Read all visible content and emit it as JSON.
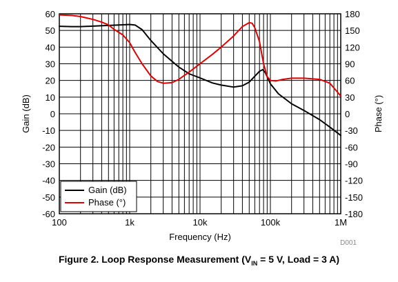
{
  "chart_data": {
    "type": "line",
    "x_scale": "log",
    "xlim": [
      100,
      1000000
    ],
    "xlabel": "Frequency (Hz)",
    "x_ticks": [
      {
        "value": 100,
        "label": "100"
      },
      {
        "value": 1000,
        "label": "1k"
      },
      {
        "value": 10000,
        "label": "10k"
      },
      {
        "value": 100000,
        "label": "100k"
      },
      {
        "value": 1000000,
        "label": "1M"
      }
    ],
    "y_left": {
      "label": "Gain (dB)",
      "lim": [
        -60,
        60
      ],
      "ticks": [
        "60",
        "50",
        "40",
        "30",
        "20",
        "10",
        "0",
        "-10",
        "-20",
        "-30",
        "-40",
        "-50",
        "-60"
      ]
    },
    "y_right": {
      "label": "Phase (°)",
      "lim": [
        -180,
        180
      ],
      "ticks": [
        "180",
        "150",
        "120",
        "90",
        "60",
        "30",
        "0",
        "-30",
        "-60",
        "-90",
        "-120",
        "-150",
        "-180"
      ]
    },
    "grid": true,
    "legend_placement": "bottom-left",
    "series": [
      {
        "name": "Gain (dB)",
        "axis": "left",
        "color": "#000000",
        "points": [
          [
            100,
            52.5
          ],
          [
            150,
            52.3
          ],
          [
            200,
            52.3
          ],
          [
            300,
            52.6
          ],
          [
            500,
            53
          ],
          [
            700,
            53.3
          ],
          [
            1000,
            53.6
          ],
          [
            1200,
            53.2
          ],
          [
            1500,
            50.5
          ],
          [
            2000,
            44
          ],
          [
            3000,
            36
          ],
          [
            5000,
            28
          ],
          [
            7000,
            24
          ],
          [
            10000,
            21.5
          ],
          [
            15000,
            18.5
          ],
          [
            20000,
            17.2
          ],
          [
            30000,
            16
          ],
          [
            40000,
            16.8
          ],
          [
            50000,
            19
          ],
          [
            60000,
            22.5
          ],
          [
            70000,
            25.5
          ],
          [
            78000,
            26.5
          ],
          [
            85000,
            24.5
          ],
          [
            100000,
            18
          ],
          [
            130000,
            12
          ],
          [
            200000,
            6
          ],
          [
            300000,
            2
          ],
          [
            500000,
            -3.5
          ],
          [
            700000,
            -8
          ],
          [
            1000000,
            -13
          ]
        ]
      },
      {
        "name": "Phase (°)",
        "axis": "right",
        "color": "#e00000",
        "points": [
          [
            100,
            178
          ],
          [
            150,
            177
          ],
          [
            200,
            175
          ],
          [
            300,
            170
          ],
          [
            400,
            165
          ],
          [
            500,
            160
          ],
          [
            600,
            152
          ],
          [
            800,
            142
          ],
          [
            1000,
            128
          ],
          [
            1200,
            110
          ],
          [
            1500,
            90
          ],
          [
            2000,
            68
          ],
          [
            2500,
            58
          ],
          [
            3000,
            55
          ],
          [
            4000,
            56
          ],
          [
            5000,
            62
          ],
          [
            7000,
            75
          ],
          [
            10000,
            90
          ],
          [
            15000,
            107
          ],
          [
            20000,
            120
          ],
          [
            30000,
            140
          ],
          [
            40000,
            157
          ],
          [
            50000,
            164
          ],
          [
            55000,
            163
          ],
          [
            60000,
            155
          ],
          [
            70000,
            130
          ],
          [
            80000,
            90
          ],
          [
            90000,
            67
          ],
          [
            100000,
            60
          ],
          [
            120000,
            59
          ],
          [
            150000,
            62
          ],
          [
            200000,
            64
          ],
          [
            300000,
            64
          ],
          [
            500000,
            62
          ],
          [
            700000,
            55
          ],
          [
            1000000,
            32
          ]
        ]
      }
    ]
  },
  "figure_code": "D001",
  "caption": {
    "prefix": "Figure 2. Loop Response Measurement (V",
    "sub": "IN",
    "suffix": " = 5 V, Load = 3 A)"
  }
}
